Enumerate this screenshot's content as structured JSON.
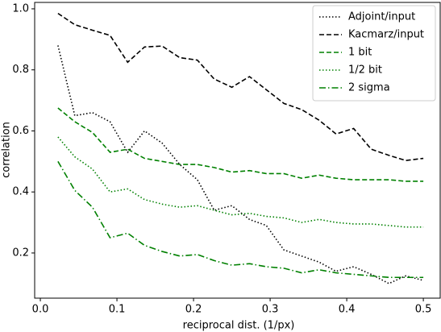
{
  "chart_data": {
    "type": "line",
    "xlabel": "reciprocal dist. (1/px)",
    "ylabel": "correlation",
    "x": [
      0.023,
      0.045,
      0.068,
      0.091,
      0.114,
      0.136,
      0.159,
      0.182,
      0.205,
      0.227,
      0.25,
      0.273,
      0.295,
      0.318,
      0.341,
      0.364,
      0.386,
      0.409,
      0.432,
      0.455,
      0.477,
      0.5
    ],
    "series": [
      {
        "name": "Adjoint/input",
        "color": "#000000",
        "dash": "dotted",
        "values": [
          0.88,
          0.65,
          0.66,
          0.63,
          0.53,
          0.6,
          0.56,
          0.49,
          0.44,
          0.34,
          0.355,
          0.31,
          0.29,
          0.21,
          0.19,
          0.17,
          0.14,
          0.155,
          0.13,
          0.1,
          0.125,
          0.11
        ]
      },
      {
        "name": "Kacmarz/input",
        "color": "#000000",
        "dash": "dashed",
        "values": [
          0.985,
          0.948,
          0.93,
          0.913,
          0.825,
          0.875,
          0.878,
          0.84,
          0.832,
          0.77,
          0.743,
          0.778,
          0.735,
          0.69,
          0.67,
          0.635,
          0.59,
          0.608,
          0.54,
          0.52,
          0.503,
          0.51
        ]
      },
      {
        "name": "1 bit",
        "color": "#008000",
        "dash": "dashed",
        "values": [
          0.675,
          0.63,
          0.595,
          0.53,
          0.54,
          0.51,
          0.5,
          0.49,
          0.49,
          0.48,
          0.465,
          0.47,
          0.46,
          0.46,
          0.445,
          0.455,
          0.445,
          0.44,
          0.44,
          0.44,
          0.435,
          0.435
        ]
      },
      {
        "name": "1/2 bit",
        "color": "#008000",
        "dash": "dotted",
        "values": [
          0.58,
          0.515,
          0.475,
          0.4,
          0.41,
          0.375,
          0.36,
          0.35,
          0.355,
          0.34,
          0.325,
          0.33,
          0.32,
          0.315,
          0.3,
          0.31,
          0.3,
          0.295,
          0.295,
          0.29,
          0.285,
          0.285
        ]
      },
      {
        "name": "2 sigma",
        "color": "#008000",
        "dash": "dashdot",
        "values": [
          0.5,
          0.405,
          0.35,
          0.25,
          0.265,
          0.225,
          0.205,
          0.19,
          0.195,
          0.175,
          0.16,
          0.165,
          0.155,
          0.15,
          0.135,
          0.145,
          0.135,
          0.13,
          0.125,
          0.12,
          0.12,
          0.12
        ]
      }
    ],
    "xlim": [
      -0.0074,
      0.522
    ],
    "ylim": [
      0.052,
      1.021
    ],
    "xticks": [
      {
        "value": 0,
        "label": "0.0"
      },
      0.1,
      0.2,
      0.3,
      0.4,
      0.5
    ],
    "yticks": [
      0.2,
      0.4,
      0.6,
      0.8,
      {
        "value": 1,
        "label": "1.0"
      }
    ],
    "legend": "upper right",
    "grid": false
  }
}
